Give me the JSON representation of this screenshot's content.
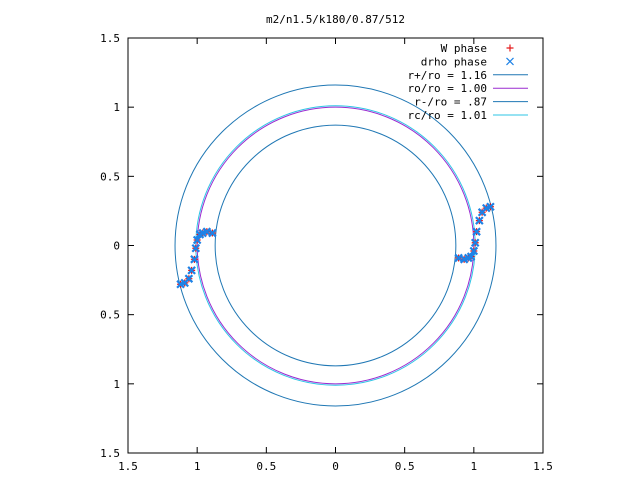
{
  "chart_data": {
    "type": "scatter",
    "title": "m2/n1.5/k180/0.87/512",
    "xlabel": "",
    "ylabel": "",
    "xlim": [
      -1.5,
      1.5
    ],
    "ylim": [
      -1.5,
      1.5
    ],
    "x_ticks": [
      -1.5,
      -1,
      -0.5,
      0,
      0.5,
      1,
      1.5
    ],
    "y_ticks": [
      -1.5,
      -1,
      -0.5,
      0,
      0.5,
      1,
      1.5
    ],
    "x_tick_labels": [
      "1.5",
      "1",
      "0.5",
      "0",
      "0.5",
      "1",
      "1.5"
    ],
    "y_tick_labels": [
      "1.5",
      "1",
      "0.5",
      "0",
      "0.5",
      "1",
      "1.5"
    ],
    "grid": false,
    "legend_position": "top-right",
    "series": [
      {
        "name": "W phase",
        "kind": "points",
        "marker": "+",
        "color": "#e41a1c",
        "x": [
          1.12,
          1.09,
          1.06,
          1.04,
          1.02,
          1.01,
          1.0,
          0.98,
          0.96,
          0.93,
          0.89,
          -1.12,
          -1.09,
          -1.06,
          -1.04,
          -1.02,
          -1.01,
          -1.0,
          -0.98,
          -0.96,
          -0.93,
          -0.89
        ],
        "y": [
          0.28,
          0.27,
          0.24,
          0.18,
          0.1,
          0.02,
          -0.04,
          -0.08,
          -0.09,
          -0.1,
          -0.09,
          -0.28,
          -0.27,
          -0.24,
          -0.18,
          -0.1,
          -0.02,
          0.04,
          0.08,
          0.09,
          0.1,
          0.09
        ]
      },
      {
        "name": "drho phase",
        "kind": "points",
        "marker": "x",
        "color": "#1e82e6",
        "x": [
          1.12,
          1.09,
          1.06,
          1.04,
          1.02,
          1.01,
          1.0,
          0.98,
          0.96,
          0.93,
          0.89,
          -1.12,
          -1.09,
          -1.06,
          -1.04,
          -1.02,
          -1.01,
          -1.0,
          -0.98,
          -0.96,
          -0.93,
          -0.89
        ],
        "y": [
          0.28,
          0.27,
          0.24,
          0.18,
          0.1,
          0.02,
          -0.04,
          -0.08,
          -0.09,
          -0.1,
          -0.09,
          -0.28,
          -0.27,
          -0.24,
          -0.18,
          -0.1,
          -0.02,
          0.04,
          0.08,
          0.09,
          0.1,
          0.09
        ]
      },
      {
        "name": "r+/ro = 1.16",
        "kind": "circle",
        "radius": 1.16,
        "color": "#1f77b4"
      },
      {
        "name": "ro/ro = 1.00",
        "kind": "circle",
        "radius": 1.0,
        "color": "#9a2bd0"
      },
      {
        "name": "r-/ro = .87",
        "kind": "circle",
        "radius": 0.87,
        "color": "#1f77b4"
      },
      {
        "name": "rc/ro = 1.01",
        "kind": "circle",
        "radius": 1.01,
        "color": "#2ec4e6"
      }
    ]
  }
}
